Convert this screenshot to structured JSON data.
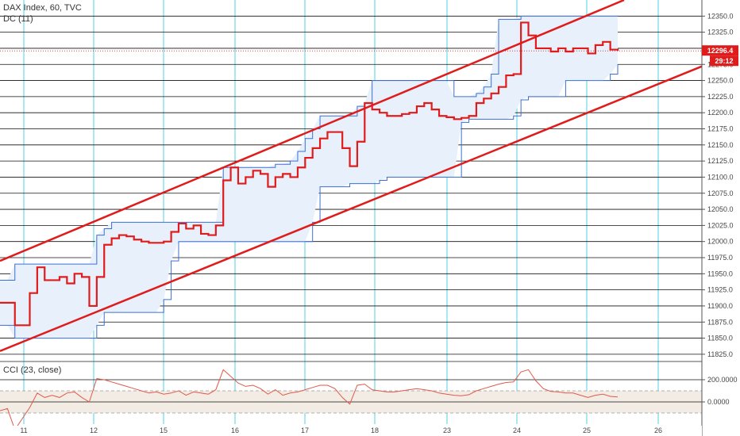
{
  "header": {
    "symbol_line": "DAX Index, 60, TVC",
    "dc_line": "DC (11)",
    "cci_line": "CCI (23, close)"
  },
  "price_tags": {
    "last_price": "12296.4",
    "countdown": "29:12"
  },
  "colors": {
    "price": "#e01b1b",
    "channel": "#e01b1b",
    "donchian": "#3b6fd6",
    "donchian_fill": "#e8f1fb",
    "grid_vertical": "#4fd3e3",
    "grid_horizontal": "#111111",
    "cci_line": "#e05a4a",
    "cci_band": "#f3ece4",
    "tag": "#e01b1b"
  },
  "chart_data": [
    {
      "type": "line",
      "title": "DAX Index, 60, TVC",
      "xlabel": "",
      "ylabel": "",
      "x_tick_labels": [
        "11",
        "12",
        "15",
        "16",
        "17",
        "18",
        "23",
        "24",
        "25",
        "26"
      ],
      "ylim": [
        11815,
        12375
      ],
      "y_ticks": [
        11825,
        11850,
        11875,
        11900,
        11925,
        11950,
        11975,
        12000,
        12025,
        12050,
        12075,
        12100,
        12125,
        12150,
        12175,
        12200,
        12225,
        12250,
        12275,
        12300,
        12325,
        12350
      ],
      "y_tick_labels": [
        "11825.0",
        "11850.0",
        "11875.0",
        "11900.0",
        "11925.0",
        "11950.0",
        "11975.0",
        "12000.0",
        "12025.0",
        "12050.0",
        "12075.0",
        "12100.0",
        "12125.0",
        "12150.0",
        "12175.0",
        "12200.0",
        "12225.0",
        "12250.0",
        "12275.0",
        "12300.0",
        "12325.0",
        "12350.0"
      ],
      "series": [
        {
          "name": "",
          "values": [
            11905,
            11905,
            11870,
            11870,
            11920,
            11960,
            11940,
            11940,
            11945,
            11935,
            11950,
            11945,
            11900,
            11945,
            11995,
            12005,
            12010,
            12008,
            12003,
            12000,
            11998,
            11998,
            12000,
            12015,
            12028,
            12020,
            12025,
            12012,
            12010,
            12025,
            12095,
            12115,
            12090,
            12100,
            12110,
            12105,
            12085,
            12100,
            12105,
            12100,
            12115,
            12130,
            12145,
            12160,
            12170,
            12170,
            12145,
            12117,
            12155,
            12215,
            12205,
            12200,
            12195,
            12195,
            12198,
            12200,
            12210,
            12215,
            12205,
            12195,
            12193,
            12190,
            12192,
            12195,
            12215,
            12222,
            12230,
            12240,
            12258,
            12260,
            12340,
            12320,
            12300,
            12300,
            12295,
            12300,
            12295,
            12300,
            12300,
            12292,
            12305,
            12310,
            12298,
            12296
          ]
        }
      ],
      "donchian": {
        "name": "DC (11)",
        "upper": [
          11940,
          11940,
          11965,
          11965,
          11965,
          11965,
          11965,
          11965,
          11965,
          11965,
          11965,
          11965,
          11965,
          12010,
          12020,
          12030,
          12030,
          12030,
          12030,
          12030,
          12030,
          12030,
          12030,
          12030,
          12030,
          12030,
          12030,
          12030,
          12030,
          12030,
          12115,
          12115,
          12115,
          12115,
          12115,
          12115,
          12115,
          12120,
          12120,
          12125,
          12140,
          12160,
          12175,
          12195,
          12195,
          12195,
          12195,
          12195,
          12210,
          12215,
          12250,
          12250,
          12250,
          12250,
          12250,
          12250,
          12250,
          12250,
          12250,
          12250,
          12250,
          12225,
          12225,
          12225,
          12230,
          12240,
          12260,
          12345,
          12345,
          12345,
          12350,
          12350,
          12350,
          12350,
          12350,
          12350,
          12350,
          12350,
          12350,
          12350,
          12350,
          12350,
          12350,
          12350
        ],
        "lower": [
          11870,
          11870,
          11850,
          11850,
          11850,
          11850,
          11850,
          11850,
          11850,
          11850,
          11850,
          11850,
          11850,
          11870,
          11890,
          11890,
          11890,
          11890,
          11890,
          11890,
          11890,
          11890,
          11910,
          11970,
          12000,
          12000,
          12000,
          12000,
          12000,
          12000,
          12000,
          12000,
          12000,
          12000,
          12000,
          12000,
          12000,
          12000,
          12000,
          12000,
          12000,
          12000,
          12030,
          12085,
          12085,
          12085,
          12085,
          12090,
          12090,
          12090,
          12090,
          12095,
          12100,
          12100,
          12100,
          12100,
          12100,
          12100,
          12100,
          12100,
          12100,
          12100,
          12185,
          12190,
          12190,
          12190,
          12190,
          12190,
          12190,
          12195,
          12220,
          12225,
          12225,
          12225,
          12225,
          12225,
          12250,
          12250,
          12250,
          12250,
          12250,
          12250,
          12260,
          12275
        ]
      },
      "trend_channel": {
        "upper": {
          "start": 11970,
          "end": 12375
        },
        "lower": {
          "start": 11830,
          "end": 12272
        }
      }
    },
    {
      "type": "line",
      "title": "CCI (23, close)",
      "ylim": [
        -200,
        350
      ],
      "y_ticks": [
        200,
        0
      ],
      "y_tick_labels": [
        "200.0000",
        "0.0000"
      ],
      "band": [
        -100,
        100
      ],
      "series": [
        {
          "name": "",
          "values": [
            -80,
            -60,
            -250,
            -150,
            -50,
            80,
            40,
            60,
            40,
            80,
            90,
            40,
            0,
            210,
            200,
            180,
            160,
            140,
            120,
            100,
            80,
            90,
            70,
            80,
            100,
            60,
            90,
            80,
            70,
            110,
            290,
            230,
            170,
            140,
            150,
            120,
            70,
            110,
            60,
            80,
            90,
            110,
            130,
            150,
            150,
            120,
            40,
            -20,
            150,
            160,
            110,
            100,
            90,
            90,
            100,
            110,
            120,
            110,
            100,
            80,
            70,
            60,
            55,
            65,
            100,
            120,
            140,
            160,
            175,
            180,
            270,
            290,
            190,
            120,
            95,
            90,
            80,
            80,
            60,
            40,
            60,
            70,
            50,
            45
          ]
        }
      ]
    }
  ]
}
